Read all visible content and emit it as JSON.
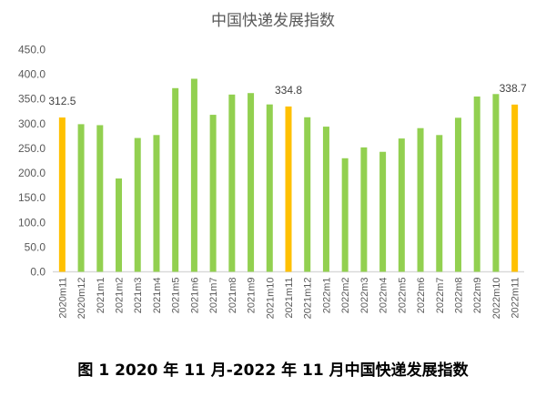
{
  "chart_data": {
    "type": "bar",
    "title": "中国快递发展指数",
    "caption": "图 1 2020 年 11 月-2022 年 11 月中国快递发展指数",
    "categories": [
      "2020m11",
      "2020m12",
      "2021m1",
      "2021m2",
      "2021m3",
      "2021m4",
      "2021m5",
      "2021m6",
      "2021m7",
      "2021m8",
      "2021m9",
      "2021m10",
      "2021m11",
      "2021m12",
      "2022m1",
      "2022m2",
      "2022m3",
      "2022m4",
      "2022m5",
      "2022m6",
      "2022m7",
      "2022m8",
      "2022m9",
      "2022m10",
      "2022m11"
    ],
    "values": [
      312.5,
      299,
      297,
      189,
      271,
      277,
      372,
      391,
      318,
      359,
      362,
      339,
      334.8,
      313,
      294,
      230,
      252,
      243,
      270,
      291,
      277,
      312,
      355,
      360,
      338.7
    ],
    "highlight": [
      "2020m11",
      "2021m11",
      "2022m11"
    ],
    "data_labels": {
      "2020m11": "312.5",
      "2021m11": "334.8",
      "2022m11": "338.7"
    },
    "ylim": [
      0,
      450
    ],
    "yticks": [
      "0.0",
      "50.0",
      "100.0",
      "150.0",
      "200.0",
      "250.0",
      "300.0",
      "350.0",
      "400.0",
      "450.0"
    ],
    "grid": false,
    "colors": {
      "bar": "#92d050",
      "highlight": "#ffc000",
      "axis": "#d9d9d9",
      "text": "#595959"
    }
  }
}
